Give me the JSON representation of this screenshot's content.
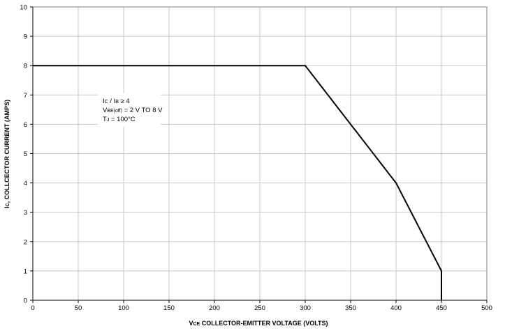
{
  "chart_data": {
    "type": "line",
    "xlabel": "VCE COLLECTOR-EMITTER VOLTAGE (VOLTS)",
    "xlabel_parts": {
      "sym": "V",
      "sub": "CE",
      "rest": " COLLECTOR-EMITTER VOLTAGE (VOLTS)"
    },
    "ylabel": "IC, COLLCECTOR CURRENT (AMPS)",
    "ylabel_parts": {
      "sym": "I",
      "sub": "C",
      "rest": ", COLLCECTOR CURRENT (AMPS)"
    },
    "xlim": [
      0,
      500
    ],
    "ylim": [
      0,
      10
    ],
    "x_ticks": [
      "0",
      "50",
      "100",
      "150",
      "200",
      "250",
      "300",
      "350",
      "400",
      "450",
      "500"
    ],
    "y_ticks": [
      "0",
      "1",
      "2",
      "3",
      "4",
      "5",
      "6",
      "7",
      "8",
      "9",
      "10"
    ],
    "grid": true,
    "series": [
      {
        "x": [
          0,
          300,
          400,
          450,
          450
        ],
        "y": [
          8,
          8,
          4,
          1,
          0
        ],
        "color": "#000000"
      }
    ],
    "annotations": [
      {
        "parts": [
          {
            "t": "I",
            "sub": false
          },
          {
            "t": "C",
            "sub": true
          },
          {
            "t": " / I",
            "sub": false
          },
          {
            "t": "B",
            "sub": true
          },
          {
            "t": " ≥ 4",
            "sub": false
          }
        ]
      },
      {
        "parts": [
          {
            "t": "V",
            "sub": false
          },
          {
            "t": "BE(off)",
            "sub": true
          },
          {
            "t": " = 2 V TO 8 V",
            "sub": false
          }
        ]
      },
      {
        "parts": [
          {
            "t": "T",
            "sub": false
          },
          {
            "t": "J",
            "sub": true
          },
          {
            "t": " = 100°C",
            "sub": false
          }
        ]
      }
    ],
    "colors": {
      "grid": "#c8c8c8",
      "frame": "#808080",
      "line": "#000000",
      "background": "#ffffff"
    }
  }
}
